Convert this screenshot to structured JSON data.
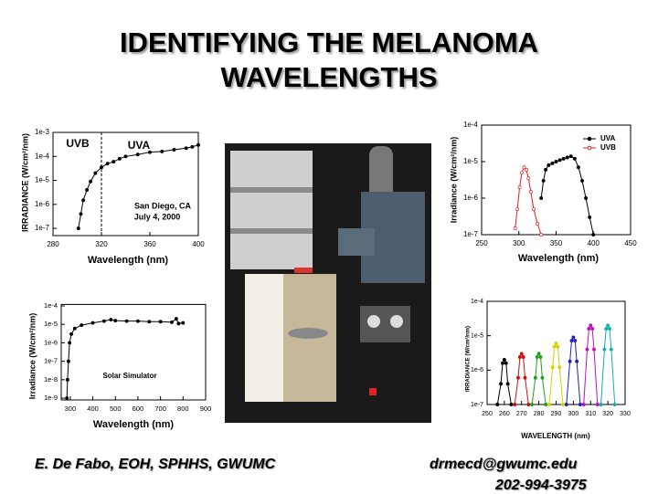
{
  "title": "IDENTIFYING THE MELANOMA WAVELENGTHS",
  "footer": {
    "left": "E. De Fabo, EOH, SPHHS, GWUMC",
    "email": "drmecd@gwumc.edu",
    "phone": "202-994-3975"
  },
  "chart_data": [
    {
      "type": "line",
      "ylabel": "IRRADIANCE (W/cm²/nm)",
      "xlabel": "Wavelength (nm)",
      "log_y": true,
      "xlim": [
        280,
        400
      ],
      "xticks": [
        280,
        320,
        360,
        400
      ],
      "ylim": [
        5e-08,
        0.001
      ],
      "yticks": [
        {
          "value": 0.001,
          "label": "1e-3"
        },
        {
          "value": 0.0001,
          "label": "1e-4"
        },
        {
          "value": 1e-05,
          "label": "1e-5"
        },
        {
          "value": 1e-06,
          "label": "1e-6"
        },
        {
          "value": 1e-07,
          "label": "1e-7"
        }
      ],
      "divider_x": 320,
      "annotations": [
        "UVB",
        "UVA",
        "San Diego, CA",
        "July 4, 2000"
      ],
      "series": [
        {
          "color": "#000000",
          "x": [
            301,
            303,
            305,
            308,
            311,
            315,
            320,
            325,
            330,
            335,
            340,
            350,
            360,
            370,
            380,
            390,
            395,
            400
          ],
          "values": [
            1e-07,
            4e-07,
            1.5e-06,
            4e-06,
            9e-06,
            2e-05,
            3.5e-05,
            5e-05,
            6e-05,
            8e-05,
            0.0001,
            0.00012,
            0.00015,
            0.00016,
            0.00019,
            0.00022,
            0.00025,
            0.0003
          ]
        }
      ]
    },
    {
      "type": "line",
      "ylabel": "Irradiance (W/cm²/nm)",
      "xlabel": "Wavelength (nm)",
      "log_y": true,
      "legend": "top-right",
      "xlim": [
        250,
        450
      ],
      "xticks": [
        250,
        300,
        350,
        400,
        450
      ],
      "ylim": [
        1e-07,
        0.0001
      ],
      "yticks": [
        {
          "value": 0.0001,
          "label": "1e-4"
        },
        {
          "value": 1e-05,
          "label": "1e-5"
        },
        {
          "value": 1e-06,
          "label": "1e-6"
        },
        {
          "value": 1e-07,
          "label": "1e-7"
        }
      ],
      "series": [
        {
          "name": "UVA",
          "color": "#000000",
          "x": [
            330,
            333,
            336,
            340,
            345,
            350,
            355,
            360,
            365,
            370,
            375,
            380,
            385,
            390,
            395,
            400
          ],
          "values": [
            1e-06,
            3e-06,
            6e-06,
            8e-06,
            9e-06,
            1e-05,
            1.1e-05,
            1.2e-05,
            1.3e-05,
            1.4e-05,
            1.2e-05,
            7e-06,
            3e-06,
            1e-06,
            3e-07,
            1e-07
          ]
        },
        {
          "name": "UVB",
          "color": "#e02020",
          "x": [
            295,
            298,
            301,
            304,
            307,
            310,
            313,
            316,
            320,
            325,
            330
          ],
          "values": [
            1.5e-07,
            5e-07,
            2e-06,
            5e-06,
            7e-06,
            6e-06,
            3.5e-06,
            1.5e-06,
            5e-07,
            2e-07,
            1e-07
          ]
        }
      ]
    },
    {
      "type": "line",
      "ylabel": "Irradiance (W/cm²/nm)",
      "xlabel": "Wavelength (nm)",
      "log_y": true,
      "xlim": [
        260,
        900
      ],
      "xticks": [
        300,
        400,
        500,
        600,
        700,
        800,
        900
      ],
      "ylim": [
        8e-10,
        0.00012
      ],
      "yticks": [
        {
          "value": 0.0001,
          "label": "1e-4"
        },
        {
          "value": 1e-05,
          "label": "1e-5"
        },
        {
          "value": 1e-06,
          "label": "1e-6"
        },
        {
          "value": 1e-07,
          "label": "1e-7"
        },
        {
          "value": 1e-08,
          "label": "1e-8"
        },
        {
          "value": 1e-09,
          "label": "1e-9"
        }
      ],
      "annotations": [
        "Solar Simulator"
      ],
      "series": [
        {
          "color": "#000000",
          "x": [
            285,
            288,
            292,
            297,
            305,
            320,
            350,
            400,
            450,
            480,
            500,
            550,
            600,
            650,
            700,
            750,
            770,
            780,
            800
          ],
          "values": [
            1e-09,
            1e-08,
            1e-07,
            1e-06,
            3e-06,
            6e-06,
            9e-06,
            1.2e-05,
            1.5e-05,
            1.8e-05,
            1.6e-05,
            1.5e-05,
            1.5e-05,
            1.4e-05,
            1.4e-05,
            1.3e-05,
            2e-05,
            1.1e-05,
            1.2e-05
          ]
        }
      ]
    },
    {
      "type": "line",
      "ylabel": "IRRADIANCE (W/cm²/nm)",
      "xlabel": "WAVELENGTH (nm)",
      "log_y": true,
      "xlim": [
        250,
        330
      ],
      "xticks": [
        250,
        260,
        270,
        280,
        290,
        300,
        310,
        320,
        330
      ],
      "ylim": [
        1e-07,
        0.0001
      ],
      "yticks": [
        {
          "value": 0.0001,
          "label": "1e-4"
        },
        {
          "value": 1e-05,
          "label": "1e-5"
        },
        {
          "value": 1e-06,
          "label": "1e-6"
        },
        {
          "value": 1e-07,
          "label": "1e-7"
        }
      ],
      "series": [
        {
          "color": "#000000",
          "x": [
            256,
            258,
            259,
            260,
            261,
            262,
            264
          ],
          "values": [
            1e-07,
            4e-07,
            1.6e-06,
            2e-06,
            1.6e-06,
            4e-07,
            1e-07
          ]
        },
        {
          "color": "#d01010",
          "x": [
            266,
            268,
            269,
            270,
            271,
            272,
            274
          ],
          "values": [
            1e-07,
            6e-07,
            2.4e-06,
            3e-06,
            2.4e-06,
            6e-07,
            1e-07
          ]
        },
        {
          "color": "#20a020",
          "x": [
            276,
            278,
            279,
            280,
            281,
            282,
            284
          ],
          "values": [
            1e-07,
            6e-07,
            2.4e-06,
            3e-06,
            2.4e-06,
            6e-07,
            1e-07
          ]
        },
        {
          "color": "#d8d000",
          "x": [
            286,
            288,
            289,
            290,
            291,
            292,
            294
          ],
          "values": [
            1e-07,
            1.2e-06,
            4.8e-06,
            6e-06,
            4.8e-06,
            1.2e-06,
            1e-07
          ]
        },
        {
          "color": "#2020c0",
          "x": [
            296,
            298,
            299,
            300,
            301,
            302,
            304
          ],
          "values": [
            1e-07,
            1.8e-06,
            7.2e-06,
            9e-06,
            7.2e-06,
            1.8e-06,
            1e-07
          ]
        },
        {
          "color": "#c010c0",
          "x": [
            306,
            308,
            309,
            310,
            311,
            312,
            314
          ],
          "values": [
            1e-07,
            4e-06,
            1.6e-05,
            2e-05,
            1.6e-05,
            4e-06,
            1e-07
          ]
        },
        {
          "color": "#10b0b0",
          "x": [
            316,
            318,
            319,
            320,
            321,
            322,
            324
          ],
          "values": [
            1e-07,
            4e-06,
            1.6e-05,
            2e-05,
            1.6e-05,
            4e-06,
            1e-07
          ]
        }
      ]
    }
  ]
}
